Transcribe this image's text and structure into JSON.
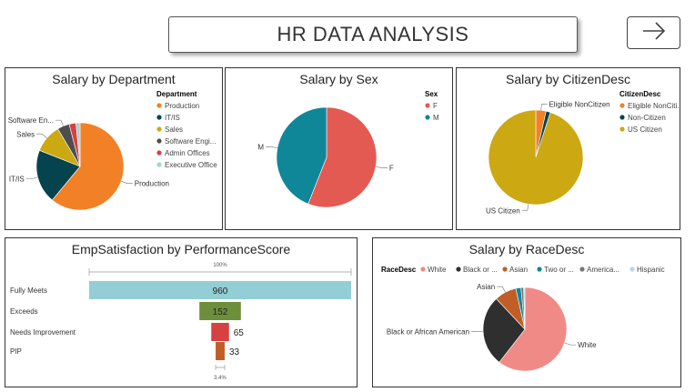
{
  "header": {
    "title": "HR DATA ANALYSIS",
    "nav_icon": "arrow-right-icon"
  },
  "colors": {
    "orange": "#F28026",
    "teal_dark": "#05434F",
    "gold": "#CCA812",
    "gray_dark": "#4E4E4E",
    "red": "#D64141",
    "light_blue": "#A3D2D9",
    "coral": "#E35A53",
    "teal": "#0F8799",
    "cyan_bar": "#93CED6",
    "olive": "#6D8F3C",
    "rust": "#C15D27",
    "salmon": "#F08A86",
    "charcoal": "#2F2F2F"
  },
  "chart_data": [
    {
      "id": "dept",
      "type": "pie",
      "title": "Salary by Department",
      "legend_title": "Department",
      "legend_position": "right",
      "labels": [
        "Production",
        "IT/IS",
        "Sales",
        "Software Engi...",
        "Admin Offices",
        "Executive Office"
      ],
      "values": [
        61.0,
        20.0,
        10.5,
        4.5,
        2.5,
        1.5
      ],
      "colors": [
        "#F28026",
        "#05434F",
        "#CCA812",
        "#4E4E4E",
        "#D64141",
        "#A3D2D9"
      ],
      "slice_labels": [
        "Production",
        "IT/IS",
        "Sales",
        "Software En...",
        "",
        ""
      ]
    },
    {
      "id": "sex",
      "type": "pie",
      "title": "Salary by Sex",
      "legend_title": "Sex",
      "legend_position": "right",
      "labels": [
        "F",
        "M"
      ],
      "values": [
        56,
        44
      ],
      "colors": [
        "#E35A53",
        "#0F8799"
      ],
      "slice_labels": [
        "F",
        "M"
      ]
    },
    {
      "id": "citizen",
      "type": "pie",
      "title": "Salary by CitizenDesc",
      "legend_title": "CitizenDesc",
      "legend_position": "right",
      "labels": [
        "Eligible NonCiti...",
        "Non-Citizen",
        "US Citizen"
      ],
      "values": [
        3.5,
        1.5,
        95
      ],
      "colors": [
        "#F28026",
        "#05434F",
        "#CCA812"
      ],
      "slice_labels": [
        "Eligible NonCitizen",
        "",
        "US Citizen"
      ]
    },
    {
      "id": "emp",
      "type": "bar",
      "subtype": "funnel",
      "title": "EmpSatisfaction by PerformanceScore",
      "categories": [
        "Fully Meets",
        "Exceeds",
        "Needs Improvement",
        "PIP"
      ],
      "values": [
        960,
        152,
        65,
        33
      ],
      "colors": [
        "#93CED6",
        "#6D8F3C",
        "#D64141",
        "#C15D27"
      ],
      "top_pct_label": "100%",
      "bottom_pct_label": "3.4%"
    },
    {
      "id": "race",
      "type": "pie",
      "title": "Salary by RaceDesc",
      "legend_title": "RaceDesc",
      "legend_position": "top",
      "labels": [
        "White",
        "Black or ...",
        "Asian",
        "Two or ...",
        "America...",
        "Hispanic"
      ],
      "values": [
        60.5,
        27.5,
        8.5,
        2.0,
        1.0,
        0.5
      ],
      "colors": [
        "#F08A86",
        "#2F2F2F",
        "#C15D27",
        "#0F8799",
        "#777777",
        "#B7D7DF"
      ],
      "slice_labels": [
        "White",
        "Black or African American",
        "Asian",
        "",
        "",
        ""
      ]
    }
  ]
}
